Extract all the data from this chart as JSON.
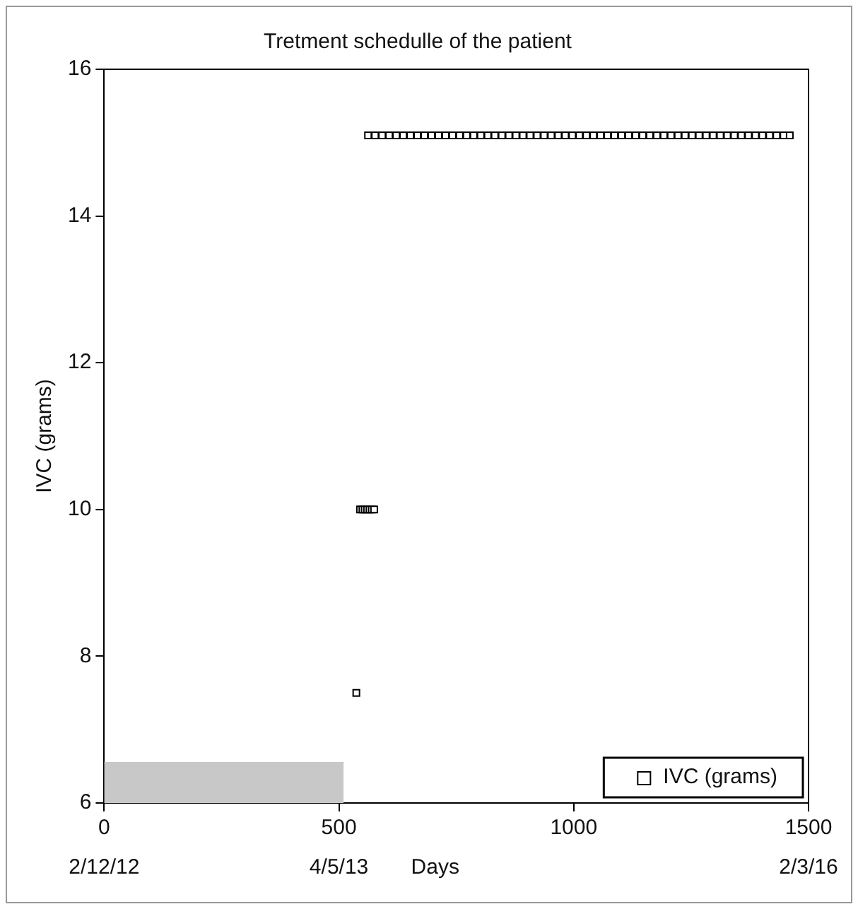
{
  "chart_data": {
    "type": "scatter",
    "title": "Tretment schedulle of the patient",
    "xlabel": "Days",
    "ylabel": "IVC (grams)",
    "series": [
      {
        "type": "area",
        "color": "#c8c8c8",
        "marker": "none",
        "x": [
          0,
          510
        ],
        "values": [
          6.55,
          6.55
        ]
      },
      {
        "name": "IVC (grams)",
        "color": "#000000",
        "marker": "square",
        "x": [
          537,
          545,
          550,
          555,
          560,
          565,
          570,
          575,
          562,
          577,
          592,
          607,
          622,
          637,
          652,
          667,
          682,
          697,
          712,
          727,
          742,
          757,
          772,
          787,
          802,
          817,
          832,
          847,
          862,
          877,
          892,
          907,
          922,
          937,
          952,
          967,
          982,
          997,
          1012,
          1027,
          1042,
          1057,
          1072,
          1087,
          1102,
          1117,
          1132,
          1147,
          1162,
          1177,
          1192,
          1207,
          1222,
          1237,
          1252,
          1267,
          1282,
          1297,
          1312,
          1327,
          1342,
          1357,
          1372,
          1387,
          1402,
          1417,
          1432,
          1447,
          1460
        ],
        "values": [
          7.5,
          10,
          10,
          10,
          10,
          10,
          10,
          10,
          15.1,
          15.1,
          15.1,
          15.1,
          15.1,
          15.1,
          15.1,
          15.1,
          15.1,
          15.1,
          15.1,
          15.1,
          15.1,
          15.1,
          15.1,
          15.1,
          15.1,
          15.1,
          15.1,
          15.1,
          15.1,
          15.1,
          15.1,
          15.1,
          15.1,
          15.1,
          15.1,
          15.1,
          15.1,
          15.1,
          15.1,
          15.1,
          15.1,
          15.1,
          15.1,
          15.1,
          15.1,
          15.1,
          15.1,
          15.1,
          15.1,
          15.1,
          15.1,
          15.1,
          15.1,
          15.1,
          15.1,
          15.1,
          15.1,
          15.1,
          15.1,
          15.1,
          15.1,
          15.1,
          15.1,
          15.1,
          15.1,
          15.1,
          15.1,
          15.1,
          15.1
        ]
      }
    ],
    "annotations": [
      "2/12/12",
      "4/5/13",
      "2/3/16"
    ],
    "xlim": [
      0,
      1500
    ],
    "xticks": [
      0,
      500,
      1000,
      1500
    ],
    "ylim": [
      6,
      16
    ],
    "yticks": [
      6,
      8,
      10,
      12,
      14,
      16
    ],
    "grid": false,
    "legend": "bottom right"
  }
}
